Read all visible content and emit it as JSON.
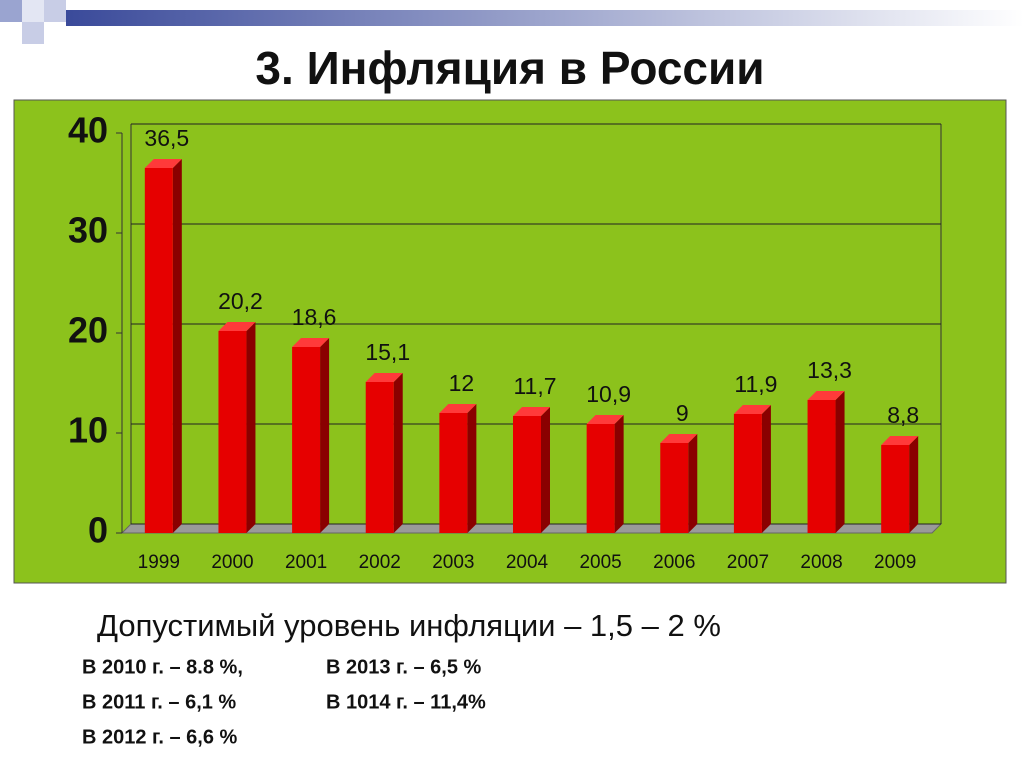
{
  "chart_data": {
    "type": "bar3d",
    "title": "3. Инфляция в России",
    "categories": [
      "1999",
      "2000",
      "2001",
      "2002",
      "2003",
      "2004",
      "2005",
      "2006",
      "2007",
      "2008",
      "2009"
    ],
    "values": [
      36.5,
      20.2,
      18.6,
      15.1,
      12,
      11.7,
      10.9,
      9,
      11.9,
      13.3,
      8.8
    ],
    "value_labels": [
      "36,5",
      "20,2",
      "18,6",
      "15,1",
      "12",
      "11,7",
      "10,9",
      "9",
      "11,9",
      "13,3",
      "8,8"
    ],
    "color": "#e60000",
    "ylim": [
      0,
      40
    ],
    "yticks": [
      0,
      10,
      20,
      30,
      40
    ],
    "grid": true
  },
  "subtitle": "Допустимый уровень инфляции – 1,5 – 2 %",
  "notes": [
    [
      "В 2010 г. – 8.8 %,",
      "В 2013 г. – 6,5 %"
    ],
    [
      "В 2011 г. – 6,1 %",
      "В 1014 г. – 11,4%"
    ],
    [
      "В 2012 г. – 6,6 %"
    ]
  ]
}
